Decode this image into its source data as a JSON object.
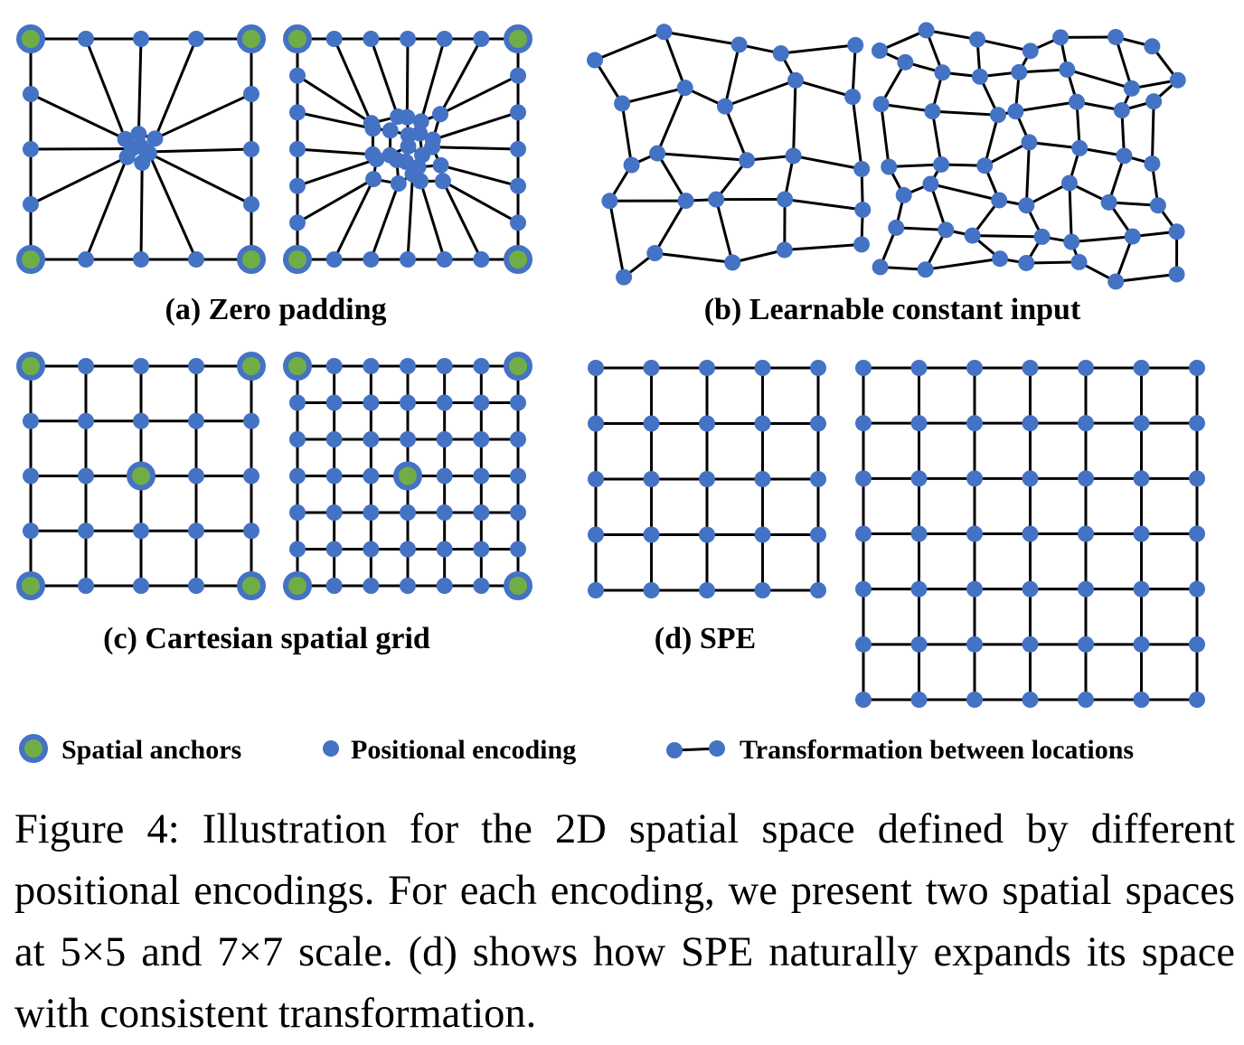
{
  "colors": {
    "node": "#4472C4",
    "anchor_fill": "#70AD47",
    "edge": "#000000"
  },
  "panels": {
    "a": {
      "label": "(a) Zero padding"
    },
    "b": {
      "label": "(b) Learnable constant input"
    },
    "c": {
      "label": "(c) Cartesian spatial grid"
    },
    "d": {
      "label": "(d) SPE"
    }
  },
  "legend": {
    "anchors": "Spatial anchors",
    "positional": "Positional encoding",
    "transformation": "Transformation between locations"
  },
  "caption": "Figure 4: Illustration for the 2D spatial space defined by different positional encodings. For each encoding, we present two spatial spaces at 5×5 and 7×7 scale. (d) shows how SPE naturally expands its space with consistent transformation."
}
